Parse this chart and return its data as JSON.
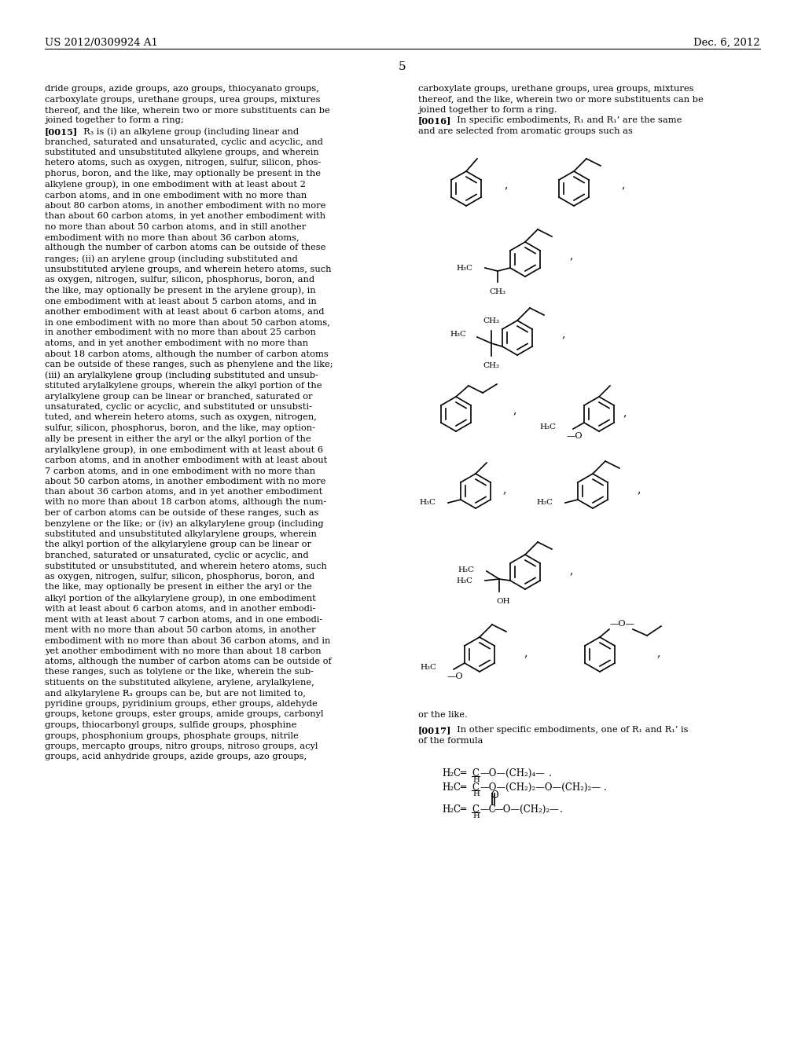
{
  "page_header_left": "US 2012/0309924 A1",
  "page_header_right": "Dec. 6, 2012",
  "page_number": "5",
  "background_color": "#ffffff",
  "text_color": "#000000",
  "left_column_text": [
    "dride groups, azide groups, azo groups, thiocyanato groups,",
    "carboxylate groups, urethane groups, urea groups, mixtures",
    "thereof, and the like, wherein two or more substituents can be",
    "joined together to form a ring;",
    "[0015]  R₃ is (i) an alkylene group (including linear and",
    "branched, saturated and unsaturated, cyclic and acyclic, and",
    "substituted and unsubstituted alkylene groups, and wherein",
    "hetero atoms, such as oxygen, nitrogen, sulfur, silicon, phos-",
    "phorus, boron, and the like, may optionally be present in the",
    "alkylene group), in one embodiment with at least about 2",
    "carbon atoms, and in one embodiment with no more than",
    "about 80 carbon atoms, in another embodiment with no more",
    "than about 60 carbon atoms, in yet another embodiment with",
    "no more than about 50 carbon atoms, and in still another",
    "embodiment with no more than about 36 carbon atoms,",
    "although the number of carbon atoms can be outside of these",
    "ranges; (ii) an arylene group (including substituted and",
    "unsubstituted arylene groups, and wherein hetero atoms, such",
    "as oxygen, nitrogen, sulfur, silicon, phosphorus, boron, and",
    "the like, may optionally be present in the arylene group), in",
    "one embodiment with at least about 5 carbon atoms, and in",
    "another embodiment with at least about 6 carbon atoms, and",
    "in one embodiment with no more than about 50 carbon atoms,",
    "in another embodiment with no more than about 25 carbon",
    "atoms, and in yet another embodiment with no more than",
    "about 18 carbon atoms, although the number of carbon atoms",
    "can be outside of these ranges, such as phenylene and the like;",
    "(iii) an arylalkylene group (including substituted and unsub-",
    "stituted arylalkylene groups, wherein the alkyl portion of the",
    "arylalkylene group can be linear or branched, saturated or",
    "unsaturated, cyclic or acyclic, and substituted or unsubsti-",
    "tuted, and wherein hetero atoms, such as oxygen, nitrogen,",
    "sulfur, silicon, phosphorus, boron, and the like, may option-",
    "ally be present in either the aryl or the alkyl portion of the",
    "arylalkylene group), in one embodiment with at least about 6",
    "carbon atoms, and in another embodiment with at least about",
    "7 carbon atoms, and in one embodiment with no more than",
    "about 50 carbon atoms, in another embodiment with no more",
    "than about 36 carbon atoms, and in yet another embodiment",
    "with no more than about 18 carbon atoms, although the num-",
    "ber of carbon atoms can be outside of these ranges, such as",
    "benzylene or the like; or (iv) an alkylarylene group (including",
    "substituted and unsubstituted alkylarylene groups, wherein",
    "the alkyl portion of the alkylarylene group can be linear or",
    "branched, saturated or unsaturated, cyclic or acyclic, and",
    "substituted or unsubstituted, and wherein hetero atoms, such",
    "as oxygen, nitrogen, sulfur, silicon, phosphorus, boron, and",
    "the like, may optionally be present in either the aryl or the",
    "alkyl portion of the alkylarylene group), in one embodiment",
    "with at least about 6 carbon atoms, and in another embodi-",
    "ment with at least about 7 carbon atoms, and in one embodi-",
    "ment with no more than about 50 carbon atoms, in another",
    "embodiment with no more than about 36 carbon atoms, and in",
    "yet another embodiment with no more than about 18 carbon",
    "atoms, although the number of carbon atoms can be outside of",
    "these ranges, such as tolylene or the like, wherein the sub-",
    "stituents on the substituted alkylene, arylene, arylalkylene,",
    "and alkylarylene R₃ groups can be, but are not limited to,",
    "pyridine groups, pyridinium groups, ether groups, aldehyde",
    "groups, ketone groups, ester groups, amide groups, carbonyl",
    "groups, thiocarbonyl groups, sulfide groups, phosphine",
    "groups, phosphonium groups, phosphate groups, nitrile",
    "groups, mercapto groups, nitro groups, nitroso groups, acyl",
    "groups, acid anhydride groups, azide groups, azo groups,"
  ],
  "right_column_text": [
    "carboxylate groups, urethane groups, urea groups, mixtures",
    "thereof, and the like, wherein two or more substituents can be",
    "joined together to form a ring.",
    "[0016]  In specific embodiments, R₁ and R₁’ are the same",
    "and are selected from aromatic groups such as"
  ],
  "or_the_like": "or the like.",
  "para_0017_a": "[0017]  In other specific embodiments, one of R₁ and R₁’ is",
  "para_0017_b": "of the formula"
}
